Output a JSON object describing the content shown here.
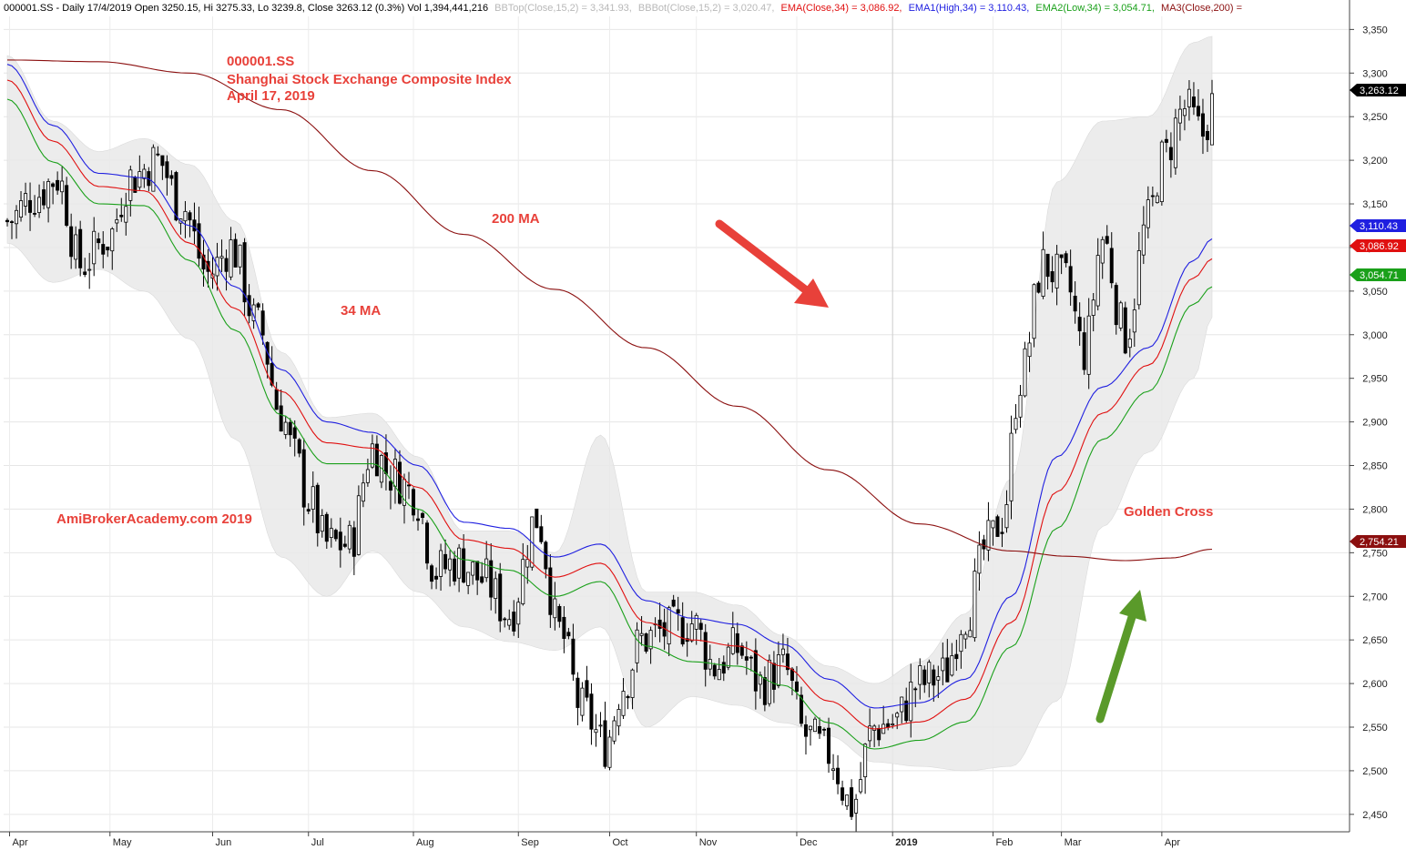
{
  "header": {
    "title": "000001.SS - Daily 17/4/2019 Open 3250.15, Hi 3275.33, Lo 3239.8, Close 3263.12 (0.3%) Vol 1,394,441,216",
    "bbtop": "BBTop(Close,15,2) = 3,341.93,",
    "bbbot": "BBBot(Close,15,2) = 3,020.47,",
    "ema": "EMA(Close,34) = 3,086.92,",
    "ema1": "EMA1(High,34) = 3,110.43,",
    "ema2": "EMA2(Low,34) = 3,054.71,",
    "ma3": "MA3(Close,200) ="
  },
  "annotations": {
    "symbol": "000001.SS",
    "name": "Shanghai Stock Exchange Composite Index",
    "date": "April 17, 2019",
    "ma200": "200 MA",
    "ma34": "34 MA",
    "watermark": "AmiBrokerAcademy.com  2019",
    "golden_cross": "Golden Cross"
  },
  "colors": {
    "ema_close": "#e01010",
    "ema_high": "#1f1fe0",
    "ema_low": "#1aa01a",
    "ma200": "#8b0f0f",
    "band": "#e9e9e9",
    "arrow_down": "#e8413a",
    "arrow_up": "#5a9a2a"
  },
  "chart_data": {
    "type": "candlestick",
    "title": "000001.SS",
    "x_axis": {
      "labels": [
        "Apr",
        "May",
        "Jun",
        "Jul",
        "Aug",
        "Sep",
        "Oct",
        "Nov",
        "Dec",
        "2019",
        "Feb",
        "Mar",
        "Apr"
      ],
      "x_ticks": [
        0.5,
        22.5,
        45,
        66,
        89,
        112,
        132,
        151,
        173,
        194,
        216,
        231,
        253
      ]
    },
    "y_axis": {
      "min": 2430,
      "max": 3365,
      "ticks": [
        2450,
        2500,
        2550,
        2600,
        2650,
        2700,
        2750,
        2800,
        2850,
        2900,
        2950,
        3000,
        3050,
        3100,
        3150,
        3200,
        3250,
        3300,
        3350
      ]
    },
    "last_values": {
      "close": "3,263.12",
      "ema_high": "3,110.43",
      "ema_close": "3,086.92",
      "ema_low": "3,054.71",
      "ma200": "2,754.21"
    },
    "series": [
      {
        "name": "EMA1(High,34)",
        "key": "ema_high",
        "x": [
          0,
          10,
          20,
          30,
          40,
          50,
          60,
          70,
          80,
          90,
          100,
          110,
          120,
          130,
          140,
          150,
          160,
          170,
          180,
          190,
          200,
          210,
          220,
          230,
          240,
          250,
          260,
          264
        ],
        "y": [
          3310,
          3240,
          3185,
          3180,
          3125,
          3055,
          2960,
          2900,
          2888,
          2850,
          2785,
          2778,
          2745,
          2760,
          2695,
          2675,
          2668,
          2645,
          2605,
          2572,
          2578,
          2605,
          2700,
          2860,
          2940,
          2985,
          3085,
          3110
        ]
      },
      {
        "name": "EMA(Close,34)",
        "key": "ema_close",
        "x": [
          0,
          10,
          20,
          30,
          40,
          50,
          60,
          70,
          80,
          90,
          100,
          110,
          120,
          130,
          140,
          150,
          160,
          170,
          180,
          190,
          200,
          210,
          220,
          230,
          240,
          250,
          260,
          264
        ],
        "y": [
          3292,
          3222,
          3170,
          3165,
          3105,
          3030,
          2935,
          2876,
          2870,
          2825,
          2765,
          2755,
          2722,
          2738,
          2670,
          2650,
          2643,
          2620,
          2580,
          2548,
          2556,
          2582,
          2670,
          2820,
          2910,
          2965,
          3065,
          3087
        ]
      },
      {
        "name": "EMA2(Low,34)",
        "key": "ema_low",
        "x": [
          0,
          10,
          20,
          30,
          40,
          50,
          60,
          70,
          80,
          90,
          100,
          110,
          120,
          130,
          140,
          150,
          160,
          170,
          180,
          190,
          200,
          210,
          220,
          230,
          240,
          250,
          260,
          264
        ],
        "y": [
          3270,
          3198,
          3150,
          3148,
          3085,
          3005,
          2908,
          2852,
          2852,
          2800,
          2742,
          2730,
          2700,
          2717,
          2643,
          2625,
          2620,
          2598,
          2555,
          2525,
          2535,
          2556,
          2642,
          2778,
          2880,
          2935,
          3035,
          3055
        ]
      },
      {
        "name": "MA3(Close,200)",
        "key": "ma200",
        "x": [
          0,
          20,
          40,
          60,
          80,
          100,
          120,
          140,
          160,
          180,
          200,
          220,
          232,
          245,
          255,
          264
        ],
        "y": [
          3315,
          3313,
          3300,
          3258,
          3188,
          3115,
          3052,
          2985,
          2918,
          2845,
          2783,
          2752,
          2746,
          2741,
          2744,
          2754
        ]
      }
    ],
    "band": {
      "x": [
        0,
        10,
        20,
        30,
        40,
        50,
        60,
        70,
        80,
        90,
        100,
        110,
        120,
        130,
        140,
        150,
        160,
        170,
        180,
        190,
        200,
        210,
        220,
        230,
        240,
        250,
        260,
        264
      ],
      "upper": [
        3320,
        3245,
        3210,
        3225,
        3195,
        3130,
        2980,
        2905,
        2910,
        2860,
        2775,
        2775,
        2750,
        2885,
        2705,
        2705,
        2690,
        2655,
        2620,
        2600,
        2625,
        2680,
        2835,
        3175,
        3245,
        3250,
        3335,
        3342
      ],
      "lower": [
        3105,
        3060,
        3075,
        3050,
        2995,
        2880,
        2745,
        2700,
        2752,
        2705,
        2665,
        2648,
        2638,
        2665,
        2550,
        2585,
        2575,
        2555,
        2540,
        2510,
        2505,
        2500,
        2505,
        2580,
        2780,
        2865,
        2950,
        3020
      ]
    },
    "candles": {
      "anchors_x": [
        0,
        6,
        11,
        16,
        22,
        27,
        33,
        38,
        44,
        49,
        55,
        60,
        63,
        66,
        70,
        75,
        80,
        84,
        89,
        94,
        99,
        104,
        110,
        116,
        121,
        126,
        131,
        135,
        139,
        144,
        150,
        155,
        160,
        165,
        170,
        175,
        180,
        185,
        190,
        194,
        200,
        205,
        210,
        215,
        218,
        222,
        227,
        232,
        236,
        240,
        245,
        250,
        253,
        258,
        262,
        264
      ],
      "anchors_c": [
        3130,
        3160,
        3180,
        3080,
        3110,
        3180,
        3200,
        3150,
        3070,
        3100,
        3010,
        2910,
        2860,
        2810,
        2760,
        2760,
        2870,
        2840,
        2820,
        2730,
        2740,
        2720,
        2680,
        2790,
        2660,
        2570,
        2530,
        2600,
        2650,
        2660,
        2670,
        2620,
        2640,
        2600,
        2620,
        2540,
        2520,
        2460,
        2550,
        2555,
        2600,
        2610,
        2680,
        2760,
        2790,
        2950,
        3080,
        3060,
        2980,
        3110,
        3000,
        3130,
        3200,
        3260,
        3230,
        3263
      ]
    }
  }
}
